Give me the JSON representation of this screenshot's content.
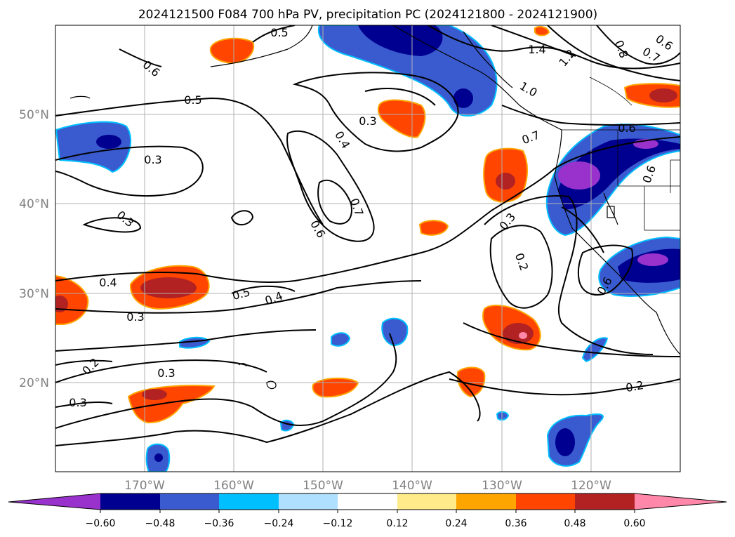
{
  "title": "2024121500 F084 700 hPa PV, precipitation PC (2024121800 - 2024121900)",
  "map": {
    "lat_labels": [
      "50°N",
      "40°N",
      "30°N",
      "20°N"
    ],
    "lon_labels": [
      "170°W",
      "160°W",
      "150°W",
      "140°W",
      "130°W",
      "120°W"
    ],
    "extent": {
      "lon_min": -180,
      "lon_max": -110,
      "lat_min": 10,
      "lat_max": 60
    }
  },
  "contour_labels": [
    "0.5",
    "0.6",
    "0.5",
    "0.3",
    "0.3",
    "0.4",
    "0.3",
    "0.2",
    "0.3",
    "0.3",
    "0.3",
    "0.4",
    "0.7",
    "0.6",
    "0.5",
    "0.4",
    "0.7",
    "1.0",
    "1.4",
    "1.2",
    "0.8",
    "0.7",
    "0.6",
    "0.6",
    "0.3",
    "0.2",
    "0.6",
    "0.6",
    "0.2"
  ],
  "colorbar": {
    "ticks": [
      "−0.60",
      "−0.48",
      "−0.36",
      "−0.24",
      "−0.12",
      "0.12",
      "0.24",
      "0.36",
      "0.48",
      "0.60"
    ],
    "colors": {
      "below": "#9932CC",
      "bins": [
        "#000090",
        "#3A5BCF",
        "#00BFFF",
        "#B0E0FF",
        "#FFFFFF",
        "#FFEB8A",
        "#FFA500",
        "#FF4500",
        "#B22222"
      ],
      "above": "#FF88AA"
    }
  }
}
